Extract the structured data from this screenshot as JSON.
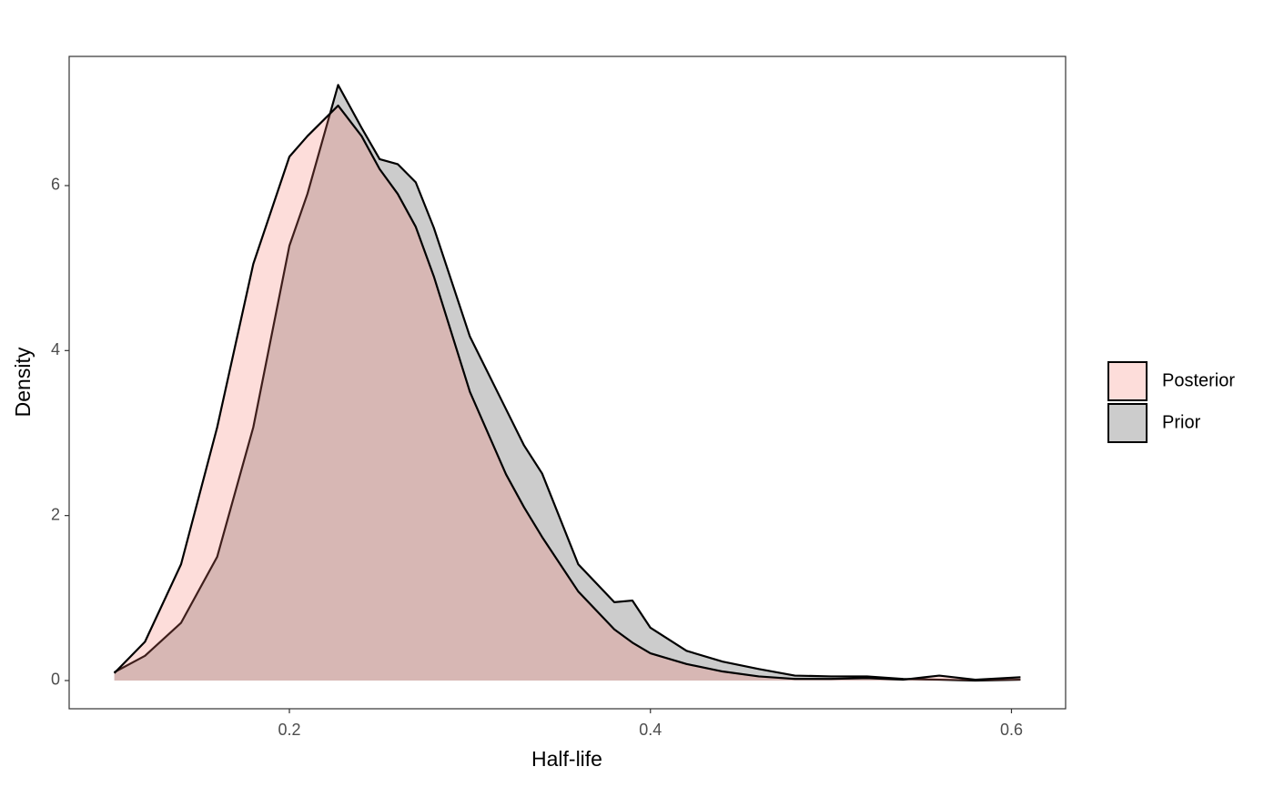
{
  "chart_data": {
    "type": "area",
    "x_label": "Half-life",
    "y_label": "Density",
    "x": [
      0.103,
      0.12,
      0.14,
      0.16,
      0.18,
      0.2,
      0.21,
      0.227,
      0.24,
      0.25,
      0.26,
      0.27,
      0.28,
      0.3,
      0.32,
      0.33,
      0.34,
      0.36,
      0.38,
      0.39,
      0.4,
      0.42,
      0.44,
      0.46,
      0.48,
      0.5,
      0.52,
      0.54,
      0.56,
      0.58,
      0.605
    ],
    "series": [
      {
        "name": "Posterior",
        "color": "#F8766D",
        "opacity": 0.25,
        "values": [
          0.09,
          0.47,
          1.41,
          3.07,
          5.05,
          6.35,
          6.6,
          6.97,
          6.6,
          6.2,
          5.9,
          5.5,
          4.9,
          3.5,
          2.5,
          2.1,
          1.74,
          1.08,
          0.62,
          0.46,
          0.33,
          0.2,
          0.11,
          0.05,
          0.02,
          0.02,
          0.03,
          0.01,
          0.06,
          0.01,
          0.04
        ]
      },
      {
        "name": "Prior",
        "color": "#000000",
        "opacity": 0.2,
        "values": [
          0.1,
          0.3,
          0.7,
          1.5,
          3.07,
          5.27,
          5.9,
          7.22,
          6.7,
          6.32,
          6.26,
          6.04,
          5.49,
          4.17,
          3.29,
          2.85,
          2.51,
          1.41,
          0.95,
          0.97,
          0.64,
          0.36,
          0.23,
          0.14,
          0.06,
          0.05,
          0.05,
          0.02,
          0.01,
          0.0,
          0.01
        ]
      }
    ],
    "xlim": [
      0.078,
      0.63
    ],
    "xticks": [
      0.2,
      0.4,
      0.6
    ],
    "ylim": [
      -0.342,
      7.566
    ],
    "yticks": [
      0,
      2,
      4,
      6
    ],
    "grid": false,
    "legend": "right"
  }
}
